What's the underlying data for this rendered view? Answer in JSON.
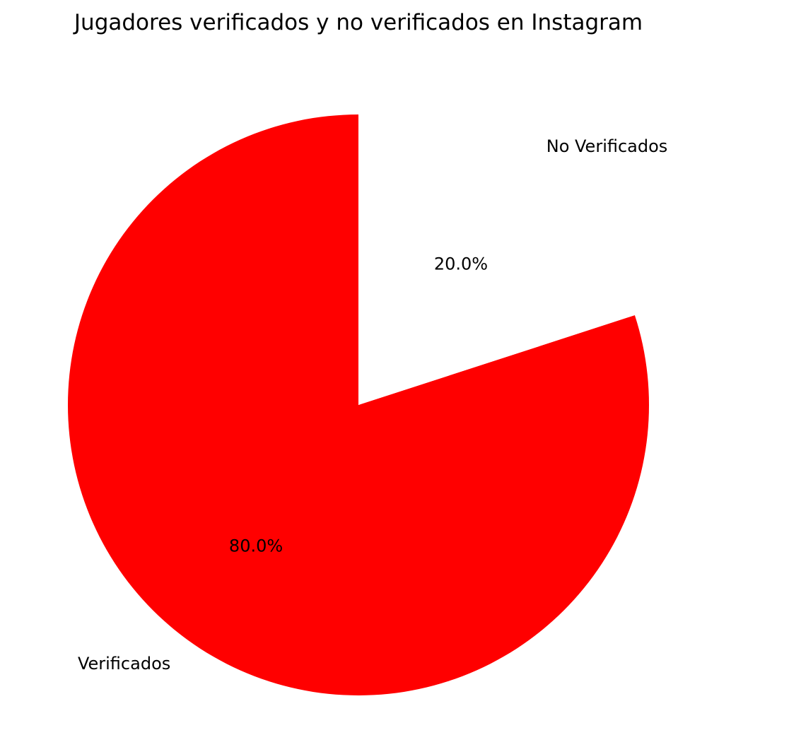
{
  "chart_data": {
    "type": "pie",
    "title": "Jugadores verificados y no verificados en Instagram",
    "start_angle_deg": 90,
    "direction": "counterclockwise",
    "slices": [
      {
        "label": "Verificados",
        "value": 80.0,
        "pct_label": "80.0%",
        "color": "#ff0000"
      },
      {
        "label": "No Verificados",
        "value": 20.0,
        "pct_label": "20.0%",
        "color": "#ffffff"
      }
    ],
    "legend": "none"
  }
}
